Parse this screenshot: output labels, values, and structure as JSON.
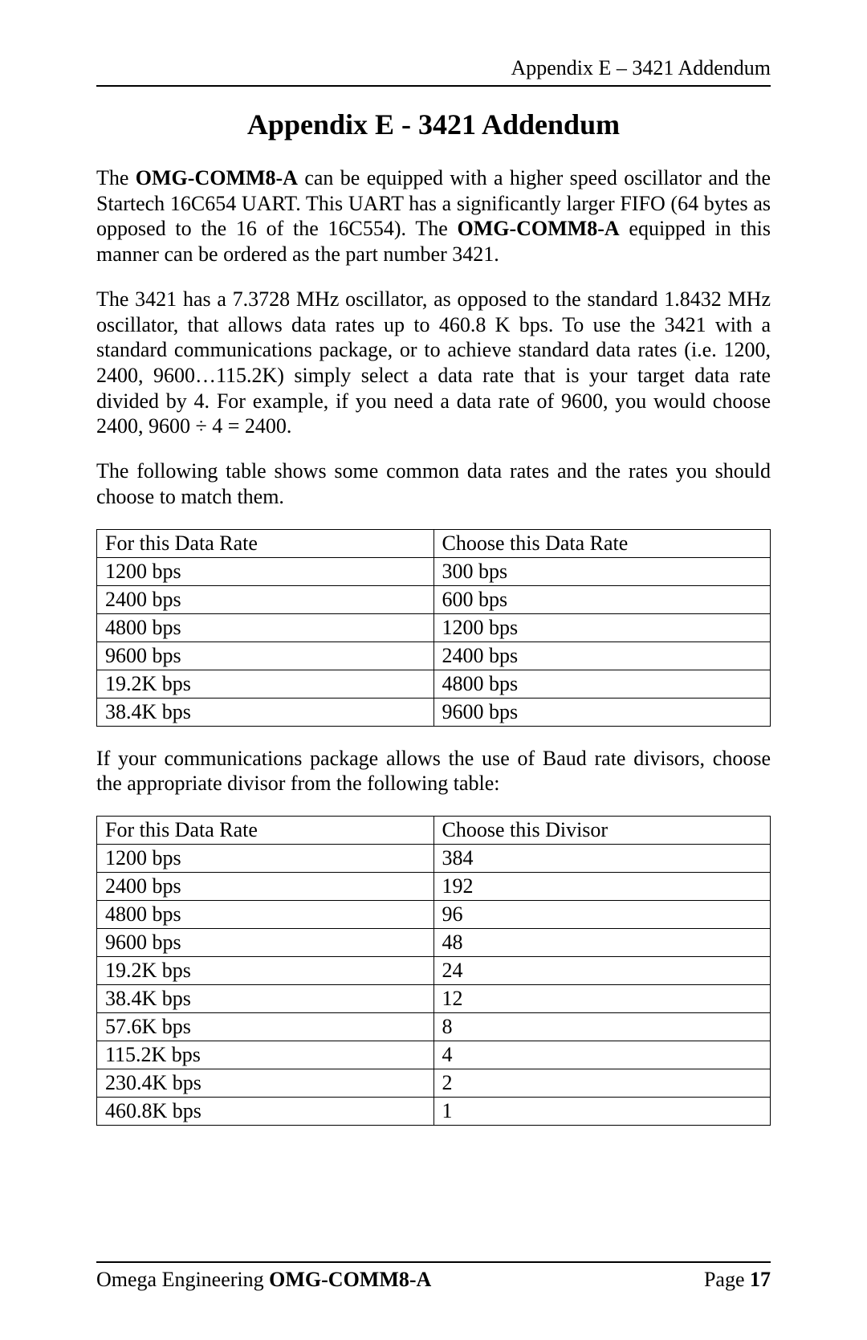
{
  "header": {
    "running_head": "Appendix E – 3421 Addendum"
  },
  "title": "Appendix E - 3421 Addendum",
  "para1": {
    "t1": "The ",
    "b1": "OMG-COMM8-A",
    "t2": " can be equipped with a higher speed oscillator and the Startech 16C654 UART. This UART has a significantly larger FIFO (64 bytes as opposed to the 16 of the 16C554). The ",
    "b2": "OMG-COMM8-A",
    "t3": " equipped in this manner can be ordered as the part number 3421."
  },
  "para2": "The 3421 has a 7.3728 MHz oscillator, as opposed to the standard 1.8432 MHz oscillator, that allows data rates up to 460.8 K bps. To use the 3421 with a standard communications package, or to achieve standard data rates (i.e. 1200, 2400, 9600…115.2K) simply select a data rate that is your target data rate divided by 4. For example, if you need a data rate of 9600, you would choose 2400,  9600 ÷ 4 = 2400.",
  "para3": "The following table shows some common data rates and the rates you should choose to match them.",
  "table1": {
    "columns": [
      "For this Data Rate",
      "Choose this Data Rate"
    ],
    "rows": [
      [
        "1200 bps",
        "300 bps"
      ],
      [
        "2400 bps",
        "600 bps"
      ],
      [
        "4800 bps",
        "1200 bps"
      ],
      [
        "9600 bps",
        "2400 bps"
      ],
      [
        "19.2K bps",
        "4800 bps"
      ],
      [
        "38.4K bps",
        "9600 bps"
      ]
    ],
    "border_color": "#000000",
    "background_color": "#ffffff",
    "font_size_pt": 20,
    "col_widths_pct": [
      50,
      50
    ]
  },
  "para4": "If your communications package allows the use of Baud rate divisors, choose the appropriate divisor from the following table:",
  "table2": {
    "columns": [
      "For this Data Rate",
      "Choose this Divisor"
    ],
    "rows": [
      [
        "1200 bps",
        "384"
      ],
      [
        "2400 bps",
        "192"
      ],
      [
        "4800 bps",
        "96"
      ],
      [
        "9600 bps",
        "48"
      ],
      [
        "19.2K bps",
        "24"
      ],
      [
        "38.4K bps",
        "12"
      ],
      [
        "57.6K bps",
        "8"
      ],
      [
        "115.2K bps",
        "4"
      ],
      [
        "230.4K bps",
        "2"
      ],
      [
        "460.8K bps",
        "1"
      ]
    ],
    "border_color": "#000000",
    "background_color": "#ffffff",
    "font_size_pt": 20,
    "col_widths_pct": [
      50,
      50
    ]
  },
  "footer": {
    "left_plain": "Omega Engineering ",
    "left_bold": "OMG-COMM8-A",
    "right_plain": "Page ",
    "right_bold": "17"
  }
}
